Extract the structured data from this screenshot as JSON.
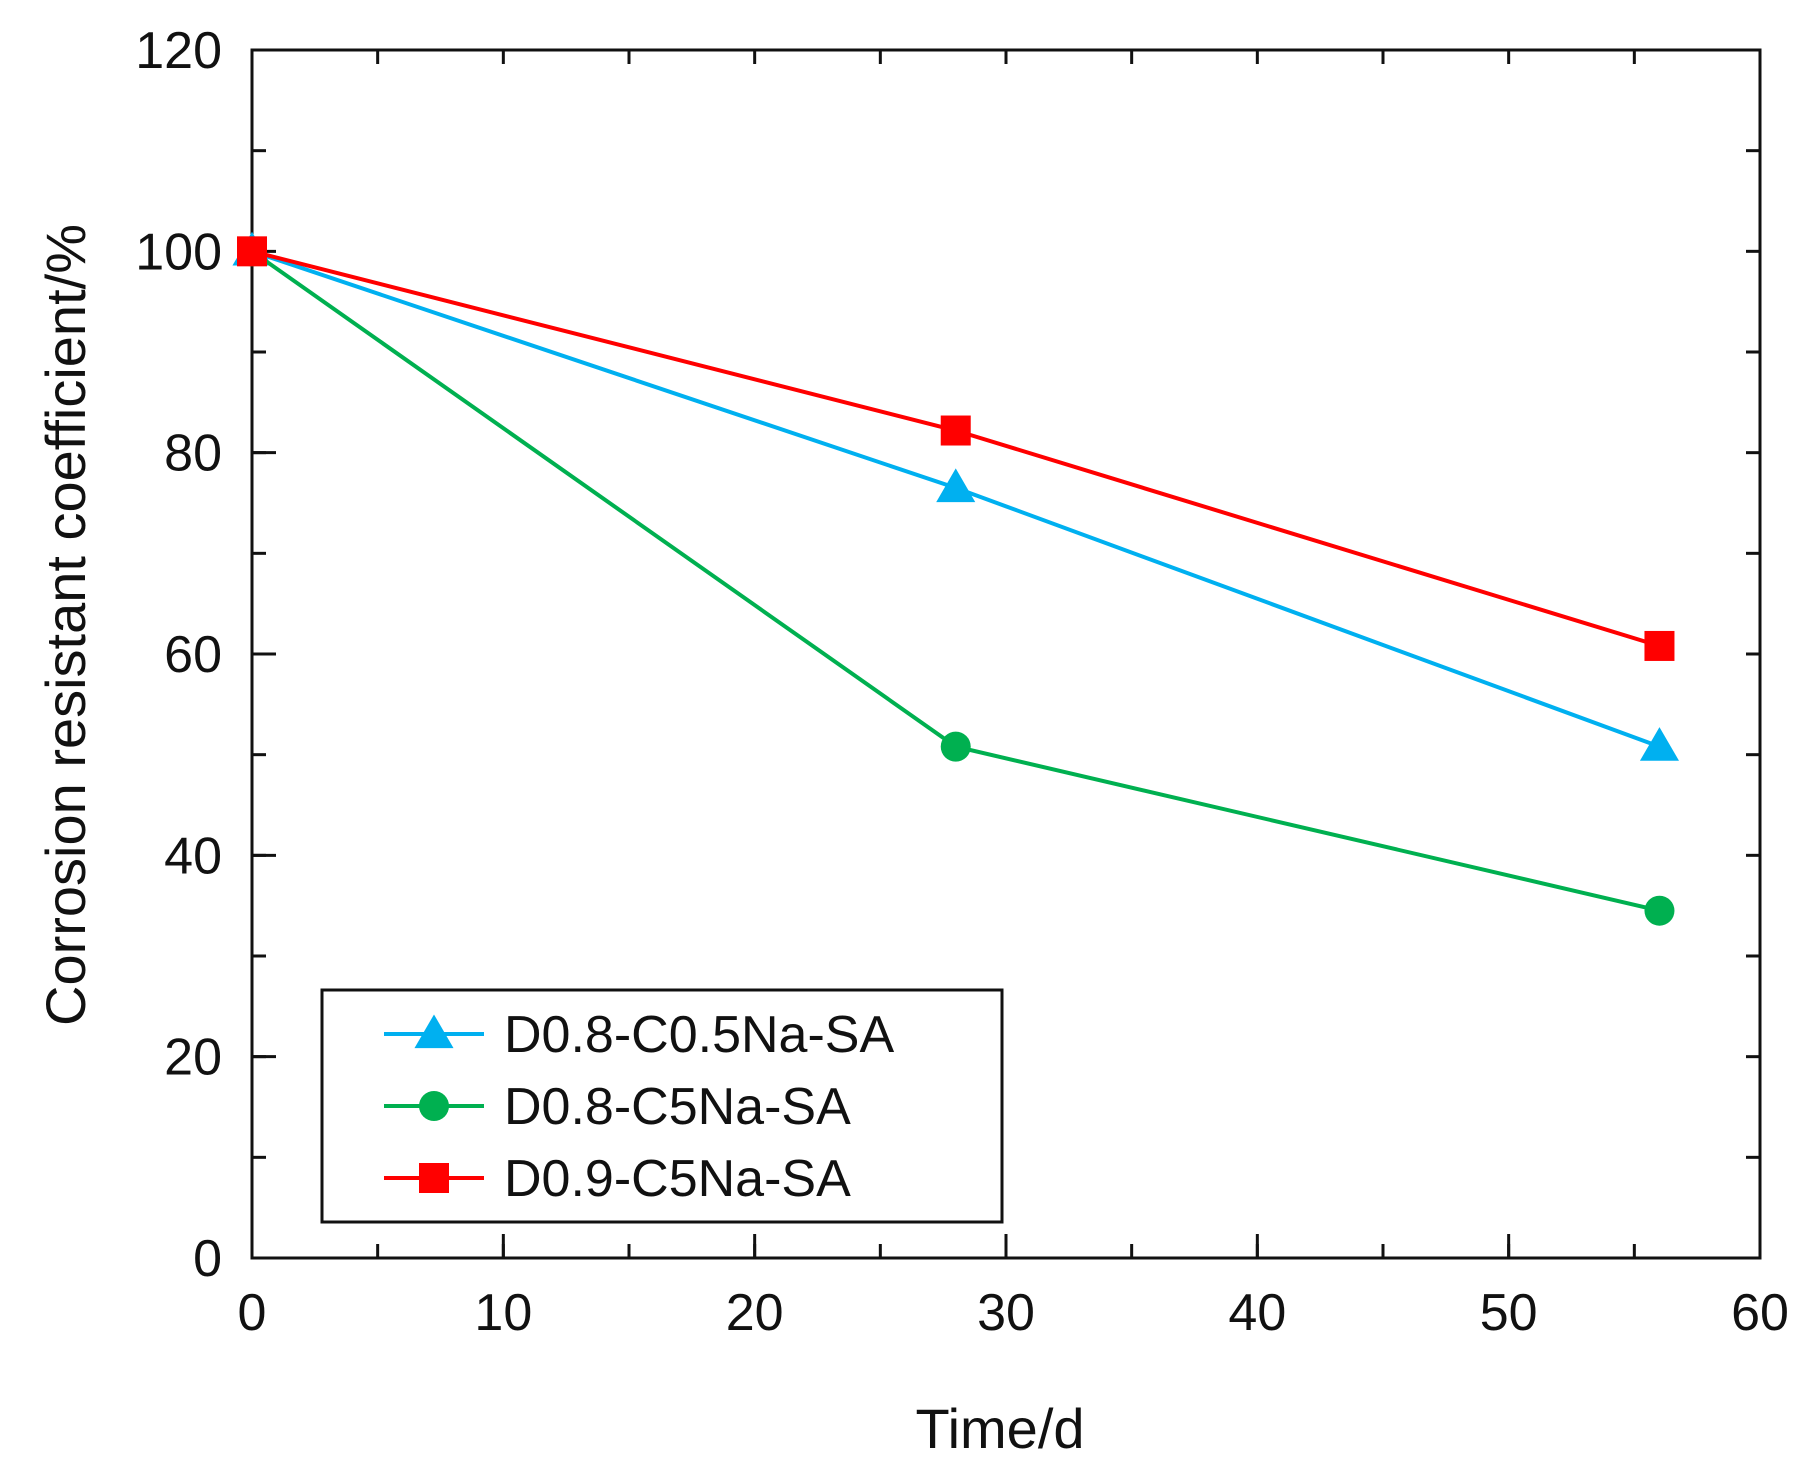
{
  "chart_data": {
    "type": "line",
    "xlabel": "Time/d",
    "ylabel": "Corrosion resistant coefficient/%",
    "xlim": [
      0,
      60
    ],
    "ylim": [
      0,
      120
    ],
    "x_ticks": [
      0,
      10,
      20,
      30,
      40,
      50,
      60
    ],
    "y_ticks": [
      0,
      20,
      40,
      60,
      80,
      100,
      120
    ],
    "x_minor_step": 5,
    "y_minor_step": 10,
    "grid": false,
    "legend_position": "bottom-left",
    "series": [
      {
        "name": "D0.8-C0.5Na-SA",
        "color": "#00b0f0",
        "marker": "triangle",
        "x": [
          0,
          28,
          56
        ],
        "y": [
          100,
          76.5,
          50.8
        ]
      },
      {
        "name": "D0.8-C5Na-SA",
        "color": "#00b050",
        "marker": "circle",
        "x": [
          0,
          28,
          56
        ],
        "y": [
          100,
          50.8,
          34.5
        ]
      },
      {
        "name": "D0.9-C5Na-SA",
        "color": "#ff0000",
        "marker": "square",
        "x": [
          0,
          28,
          56
        ],
        "y": [
          100,
          82.2,
          60.8
        ]
      }
    ]
  }
}
